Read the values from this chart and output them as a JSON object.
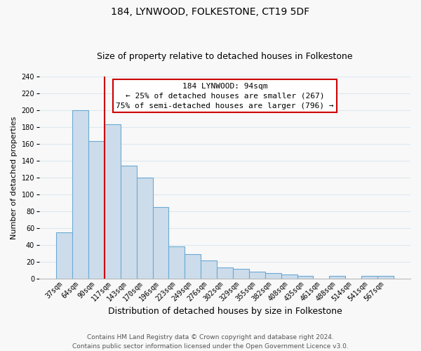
{
  "title": "184, LYNWOOD, FOLKESTONE, CT19 5DF",
  "subtitle": "Size of property relative to detached houses in Folkestone",
  "xlabel": "Distribution of detached houses by size in Folkestone",
  "ylabel": "Number of detached properties",
  "bin_labels": [
    "37sqm",
    "64sqm",
    "90sqm",
    "117sqm",
    "143sqm",
    "170sqm",
    "196sqm",
    "223sqm",
    "249sqm",
    "276sqm",
    "302sqm",
    "329sqm",
    "355sqm",
    "382sqm",
    "408sqm",
    "435sqm",
    "461sqm",
    "488sqm",
    "514sqm",
    "541sqm",
    "567sqm"
  ],
  "bar_heights": [
    55,
    200,
    163,
    183,
    134,
    120,
    85,
    38,
    29,
    21,
    13,
    11,
    8,
    6,
    5,
    3,
    0,
    3,
    0,
    3,
    3
  ],
  "bar_color": "#cddceb",
  "bar_edge_color": "#6aaad4",
  "highlight_line_color": "#cc0000",
  "annotation_text": "184 LYNWOOD: 94sqm\n← 25% of detached houses are smaller (267)\n75% of semi-detached houses are larger (796) →",
  "annotation_box_color": "#ffffff",
  "annotation_box_edge": "#cc0000",
  "ylim": [
    0,
    240
  ],
  "yticks": [
    0,
    20,
    40,
    60,
    80,
    100,
    120,
    140,
    160,
    180,
    200,
    220,
    240
  ],
  "footer_line1": "Contains HM Land Registry data © Crown copyright and database right 2024.",
  "footer_line2": "Contains public sector information licensed under the Open Government Licence v3.0.",
  "background_color": "#f8f8f8",
  "grid_color": "#dde8f0",
  "title_fontsize": 10,
  "subtitle_fontsize": 9,
  "xlabel_fontsize": 9,
  "ylabel_fontsize": 8,
  "tick_fontsize": 7,
  "annotation_fontsize": 8,
  "footer_fontsize": 6.5
}
